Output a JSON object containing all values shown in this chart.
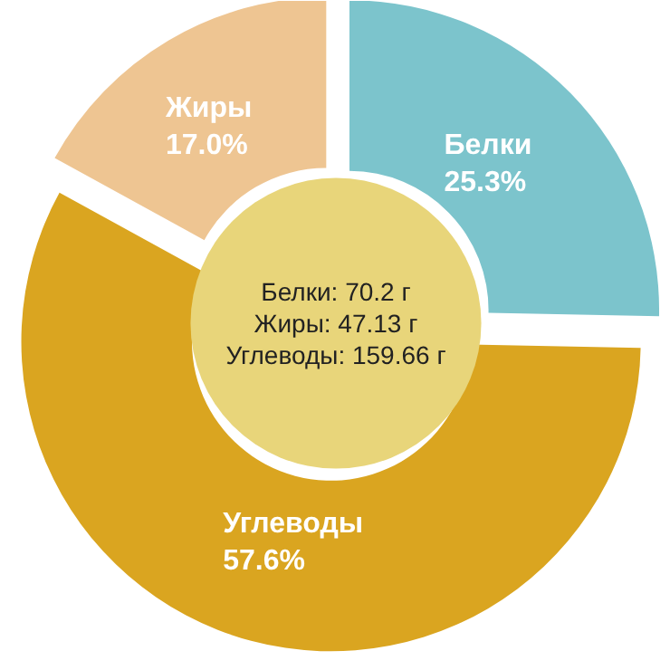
{
  "chart_data": {
    "type": "donut",
    "categories": [
      "Белки",
      "Углеводы",
      "Жиры"
    ],
    "values": [
      25.3,
      57.6,
      17.0
    ],
    "colors": [
      "#7cc4cc",
      "#daa520",
      "#eec592"
    ],
    "value_labels": [
      "25.3%",
      "57.6%",
      "17.0%"
    ],
    "annotations": [
      "Белки: 70.2 г",
      "Жиры: 47.13 г",
      "Углеводы: 159.66 г"
    ],
    "legend": false
  }
}
